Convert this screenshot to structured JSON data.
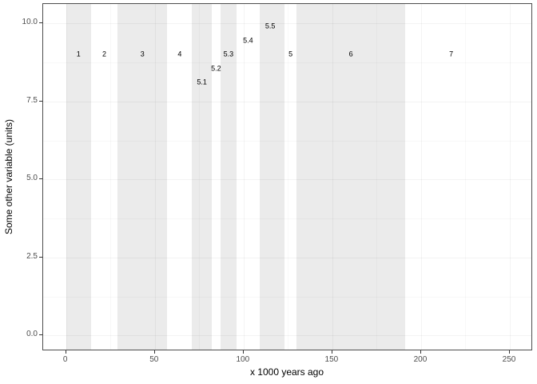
{
  "chart_data": {
    "type": "annotation-bands",
    "title": "",
    "xlabel": "x 1000 years ago",
    "ylabel": "Some other variable (units)",
    "xlim": [
      0,
      250
    ],
    "ylim": [
      0,
      10
    ],
    "grid": true,
    "legend": "none",
    "theme": "bw",
    "x_ticks": [
      {
        "value": 0,
        "label": "0"
      },
      {
        "value": 50,
        "label": "50"
      },
      {
        "value": 100,
        "label": "100"
      },
      {
        "value": 150,
        "label": "150"
      },
      {
        "value": 200,
        "label": "200"
      },
      {
        "value": 250,
        "label": "250"
      }
    ],
    "x_minor_ticks": [
      25,
      75,
      125,
      175,
      225
    ],
    "y_ticks": [
      {
        "value": 0,
        "label": "0.0"
      },
      {
        "value": 2.5,
        "label": "2.5"
      },
      {
        "value": 5,
        "label": "5.0"
      },
      {
        "value": 7.5,
        "label": "7.5"
      },
      {
        "value": 10,
        "label": "10.0"
      }
    ],
    "y_minor_ticks": [
      1.25,
      3.75,
      6.25,
      8.75
    ],
    "stages": [
      {
        "label": "1",
        "start": 0,
        "end": 14,
        "shaded": true,
        "label_x": 7,
        "label_y": 9
      },
      {
        "label": "2",
        "start": 14,
        "end": 29,
        "shaded": false,
        "label_x": 21.5,
        "label_y": 9
      },
      {
        "label": "3",
        "start": 29,
        "end": 57,
        "shaded": true,
        "label_x": 43,
        "label_y": 9
      },
      {
        "label": "4",
        "start": 57,
        "end": 71,
        "shaded": false,
        "label_x": 64,
        "label_y": 9
      },
      {
        "label": "5.1",
        "start": 71,
        "end": 82,
        "shaded": true,
        "label_x": 76.5,
        "label_y": 8.1
      },
      {
        "label": "5.2",
        "start": 82,
        "end": 87,
        "shaded": false,
        "label_x": 84.5,
        "label_y": 8.55
      },
      {
        "label": "5.3",
        "start": 87,
        "end": 96,
        "shaded": true,
        "label_x": 91.5,
        "label_y": 9
      },
      {
        "label": "5.4",
        "start": 96,
        "end": 109,
        "shaded": false,
        "label_x": 102.5,
        "label_y": 9.45
      },
      {
        "label": "5.5",
        "start": 109,
        "end": 123,
        "shaded": true,
        "label_x": 115,
        "label_y": 9.9
      },
      {
        "label": "5",
        "start": 123,
        "end": 130,
        "shaded": false,
        "label_x": 126.5,
        "label_y": 9
      },
      {
        "label": "6",
        "start": 130,
        "end": 191,
        "shaded": true,
        "label_x": 160.5,
        "label_y": 9
      },
      {
        "label": "7",
        "start": 191,
        "end": 243,
        "shaded": false,
        "label_x": 217,
        "label_y": 9
      }
    ]
  },
  "colors": {
    "band_fill": "#ebebeb",
    "panel_border": "#4d4d4d",
    "tick_mark": "#333333",
    "tick_label": "#4d4d4d",
    "axis_title": "#000000",
    "background": "#ffffff"
  }
}
